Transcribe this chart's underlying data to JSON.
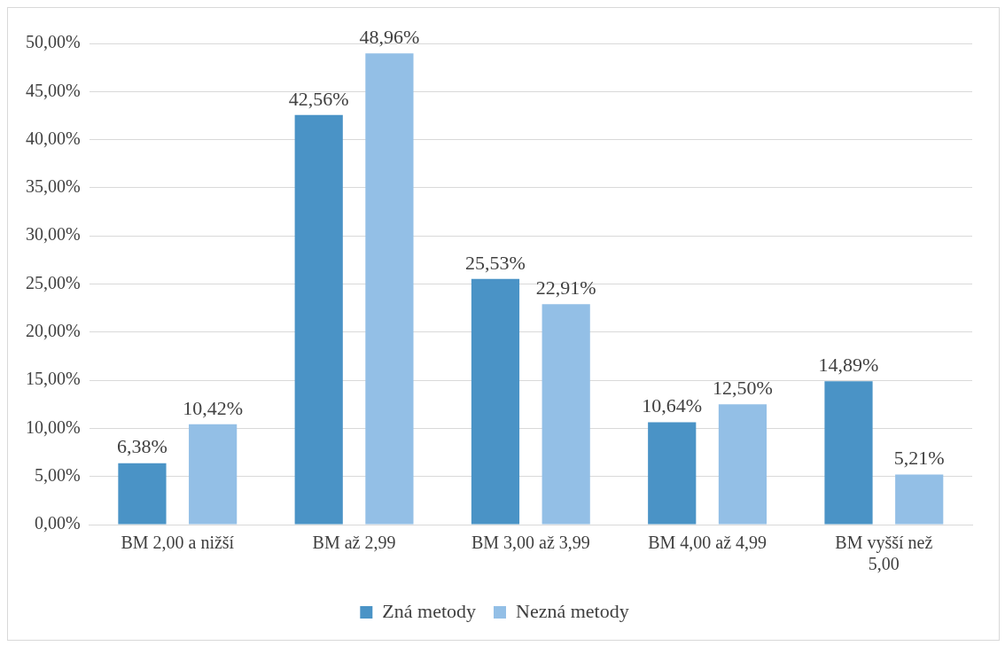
{
  "chart_data": {
    "type": "bar",
    "categories": [
      "BM 2,00 a nižší",
      "BM až 2,99",
      "BM 3,00 až 3,99",
      "BM 4,00 až 4,99",
      "BM vyšší než 5,00"
    ],
    "series": [
      {
        "name": "Zná metody",
        "color": "#4a93c6",
        "values": [
          6.38,
          42.56,
          25.53,
          10.64,
          14.89
        ],
        "value_labels": [
          "6,38%",
          "42,56%",
          "25,53%",
          "10,64%",
          "14,89%"
        ]
      },
      {
        "name": "Nezná metody",
        "color": "#93bfe6",
        "values": [
          10.42,
          48.96,
          22.91,
          12.5,
          5.21
        ],
        "value_labels": [
          "10,42%",
          "48,96%",
          "22,91%",
          "12,50%",
          "5,21%"
        ]
      }
    ],
    "ylim": [
      0,
      50
    ],
    "yticks": [
      {
        "value": 0,
        "label": "0,00%"
      },
      {
        "value": 5,
        "label": "5,00%"
      },
      {
        "value": 10,
        "label": "10,00%"
      },
      {
        "value": 15,
        "label": "15,00%"
      },
      {
        "value": 20,
        "label": "20,00%"
      },
      {
        "value": 25,
        "label": "25,00%"
      },
      {
        "value": 30,
        "label": "30,00%"
      },
      {
        "value": 35,
        "label": "35,00%"
      },
      {
        "value": 40,
        "label": "40,00%"
      },
      {
        "value": 45,
        "label": "45,00%"
      },
      {
        "value": 50,
        "label": "50,00%"
      }
    ],
    "grid": "y",
    "legend": "bottom"
  }
}
